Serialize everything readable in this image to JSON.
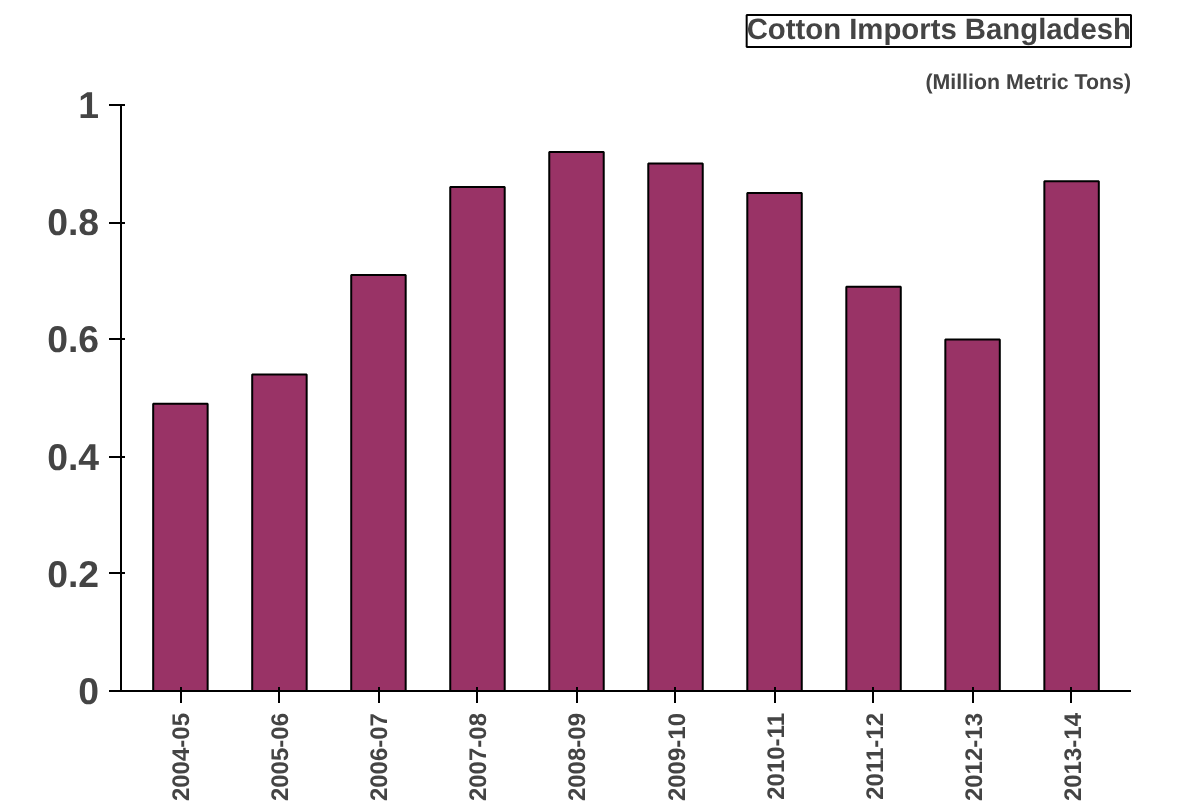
{
  "chart_data": {
    "type": "bar",
    "title": "Cotton Imports Bangladesh",
    "subtitle": "(Million Metric Tons)",
    "categories": [
      "2004-05",
      "2005-06",
      "2006-07",
      "2007-08",
      "2008-09",
      "2009-10",
      "2010-11",
      "2011-12",
      "2012-13",
      "2013-14"
    ],
    "values": [
      0.49,
      0.54,
      0.71,
      0.86,
      0.92,
      0.9,
      0.85,
      0.69,
      0.6,
      0.87
    ],
    "color": "#993366",
    "ylim": [
      0,
      1
    ],
    "yticks": [
      0,
      0.2,
      0.4,
      0.6,
      0.8,
      1
    ],
    "grid": false
  }
}
